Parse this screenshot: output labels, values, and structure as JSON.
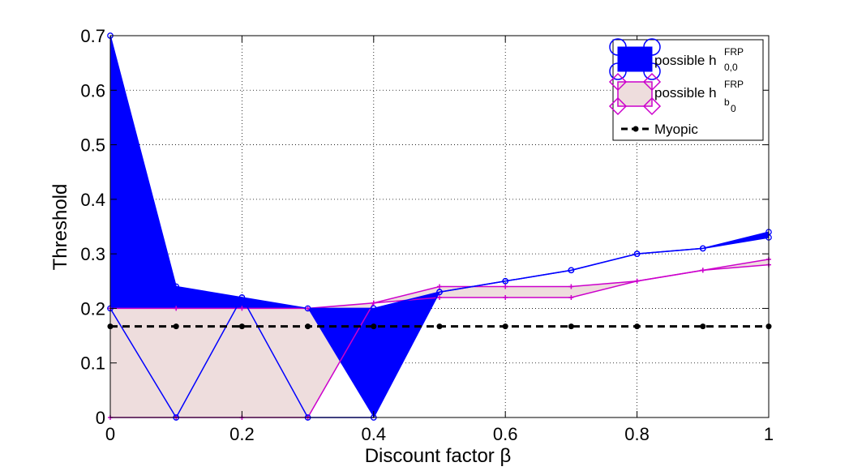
{
  "chart_data": {
    "type": "line",
    "xlabel": "Discount factor β",
    "ylabel": "Threshold",
    "xlim": [
      0,
      1
    ],
    "ylim": [
      0,
      0.7
    ],
    "xticks": [
      0,
      0.2,
      0.4,
      0.6,
      0.8,
      1
    ],
    "xtick_labels": [
      "0",
      "0.2",
      "0.4",
      "0.6",
      "0.8",
      "1"
    ],
    "yticks": [
      0,
      0.1,
      0.2,
      0.3,
      0.4,
      0.5,
      0.6,
      0.7
    ],
    "ytick_labels": [
      "0",
      "0.1",
      "0.2",
      "0.3",
      "0.4",
      "0.5",
      "0.6",
      "0.7"
    ],
    "grid": true,
    "legend_position": "top-right",
    "x": [
      0,
      0.1,
      0.2,
      0.3,
      0.4,
      0.5,
      0.6,
      0.7,
      0.8,
      0.9,
      1.0
    ],
    "series": [
      {
        "name": "possible h_{0,0}^{FRP}",
        "legend_main": "possible h",
        "legend_sup": "FRP",
        "legend_sub": "0,0",
        "kind": "band",
        "color": "#0000ff",
        "fill": "#0000ff",
        "marker": "circle",
        "upper": [
          0.7,
          0.24,
          0.22,
          0.2,
          0.2,
          0.23,
          0.25,
          0.27,
          0.3,
          0.31,
          0.34
        ],
        "lower": [
          0.2,
          0.0,
          0.22,
          0.0,
          0.0,
          0.23,
          0.25,
          0.27,
          0.3,
          0.31,
          0.33
        ],
        "band_lower": [
          0.2,
          0.2,
          0.2,
          0.2,
          0.0,
          0.23,
          0.25,
          0.27,
          0.3,
          0.31,
          0.33
        ]
      },
      {
        "name": "possible h_{b_0}^{FRP}",
        "legend_main": "possible h",
        "legend_sup": "FRP",
        "legend_sub": "b",
        "legend_subsub": "0",
        "kind": "band",
        "color": "#cc00cc",
        "fill": "#eedddd",
        "marker": "plus",
        "upper": [
          0.2,
          0.2,
          0.2,
          0.2,
          0.21,
          0.24,
          0.24,
          0.24,
          0.25,
          0.27,
          0.29
        ],
        "lower": [
          0.0,
          0.0,
          0.0,
          0.0,
          0.21,
          0.22,
          0.22,
          0.22,
          0.25,
          0.27,
          0.28
        ]
      },
      {
        "name": "Myopic",
        "legend_main": "Myopic",
        "kind": "line",
        "color": "#000000",
        "dash": true,
        "marker": "dot",
        "values": [
          0.167,
          0.167,
          0.167,
          0.167,
          0.167,
          0.167,
          0.167,
          0.167,
          0.167,
          0.167,
          0.167
        ]
      }
    ]
  }
}
